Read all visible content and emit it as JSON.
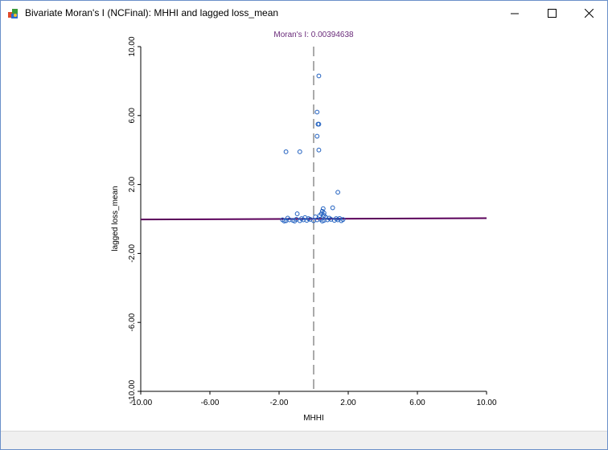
{
  "window": {
    "title": "Bivariate Moran's I (NCFinal): MHHI and lagged loss_mean",
    "icon": "geoda-app-icon",
    "controls": [
      "minimize-icon",
      "maximize-icon",
      "close-icon"
    ]
  },
  "chart_data": {
    "type": "scatter",
    "title": "Moran's I: 0.00394638",
    "xlabel": "MHHI",
    "ylabel": "lagged loss_mean",
    "xlim": [
      -10,
      10
    ],
    "ylim": [
      -10,
      10
    ],
    "x_ticks": [
      "-10.00",
      "-6.00",
      "-2.00",
      "2.00",
      "6.00",
      "10.00"
    ],
    "y_ticks": [
      "-10.00",
      "-6.00",
      "-2.00",
      "2.00",
      "6.00",
      "10.00"
    ],
    "x_tick_values": [
      -10,
      -6,
      -2,
      2,
      6,
      10
    ],
    "y_tick_values": [
      -10,
      -6,
      -2,
      2,
      6,
      10
    ],
    "regression_line": {
      "slope": 0.00394638,
      "intercept": 0.01,
      "color": "#5a005a"
    },
    "zero_line_x": 0,
    "point_color": "#1f5fbf",
    "title_color": "#6a2b7a",
    "grid": false,
    "points": [
      [
        0.3,
        8.3
      ],
      [
        0.2,
        6.2
      ],
      [
        0.25,
        5.5
      ],
      [
        0.3,
        5.5
      ],
      [
        0.2,
        4.8
      ],
      [
        0.3,
        4.0
      ],
      [
        -1.6,
        3.9
      ],
      [
        -0.8,
        3.9
      ],
      [
        1.4,
        1.55
      ],
      [
        1.1,
        0.65
      ],
      [
        0.55,
        0.6
      ],
      [
        0.5,
        0.45
      ],
      [
        0.6,
        0.35
      ],
      [
        0.45,
        0.3
      ],
      [
        0.35,
        0.2
      ],
      [
        0.6,
        0.2
      ],
      [
        -0.95,
        0.3
      ],
      [
        -1.5,
        0.05
      ],
      [
        -1.8,
        -0.05
      ],
      [
        -1.6,
        -0.1
      ],
      [
        -1.4,
        -0.05
      ],
      [
        -1.2,
        -0.08
      ],
      [
        -1.0,
        -0.02
      ],
      [
        -0.8,
        -0.1
      ],
      [
        -0.6,
        -0.05
      ],
      [
        -0.4,
        -0.08
      ],
      [
        -0.2,
        -0.02
      ],
      [
        0.0,
        -0.1
      ],
      [
        0.2,
        -0.05
      ],
      [
        0.4,
        -0.02
      ],
      [
        0.6,
        -0.08
      ],
      [
        0.8,
        -0.05
      ],
      [
        1.0,
        -0.02
      ],
      [
        1.2,
        -0.08
      ],
      [
        1.4,
        -0.05
      ],
      [
        1.6,
        -0.1
      ],
      [
        1.7,
        -0.03
      ],
      [
        0.7,
        0.1
      ],
      [
        0.9,
        0.05
      ],
      [
        -0.5,
        0.08
      ],
      [
        -0.3,
        0.02
      ],
      [
        0.1,
        0.12
      ],
      [
        1.3,
        0.02
      ],
      [
        -1.7,
        -0.12
      ],
      [
        -1.1,
        -0.12
      ],
      [
        0.5,
        -0.12
      ],
      [
        1.5,
        0.03
      ],
      [
        -0.7,
        0.02
      ]
    ]
  }
}
